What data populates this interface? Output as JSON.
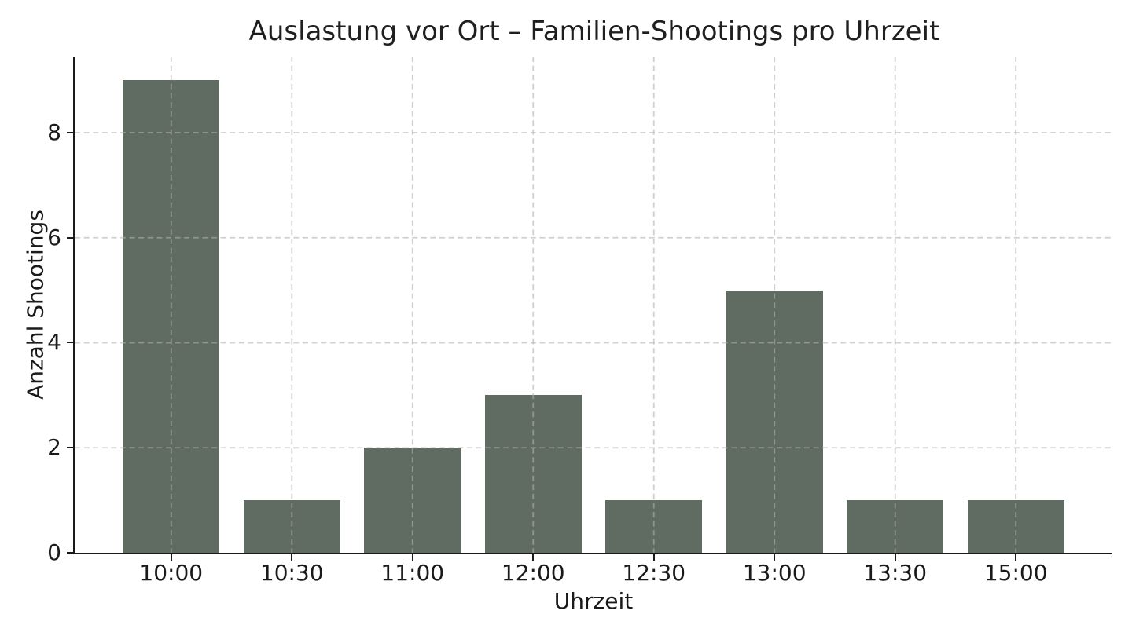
{
  "chart_data": {
    "type": "bar",
    "title": "Auslastung vor Ort – Familien-Shootings pro Uhrzeit",
    "xlabel": "Uhrzeit",
    "ylabel": "Anzahl Shootings",
    "categories": [
      "10:00",
      "10:30",
      "11:00",
      "12:00",
      "12:30",
      "13:00",
      "13:30",
      "15:00"
    ],
    "values": [
      9,
      1,
      2,
      3,
      1,
      5,
      1,
      1
    ],
    "yticks": [
      0,
      2,
      4,
      6,
      8
    ],
    "ylim": [
      0,
      9.45
    ],
    "xlim": [
      -0.8,
      7.8
    ],
    "bar_width": 0.8,
    "grid": true,
    "grid_style": "dashed",
    "legend_position": "none",
    "colors": {
      "bar": "#606c61",
      "grid": "rgba(176,176,176,0.6)",
      "axis": "#1a1a1a",
      "text": "#1a1a1a",
      "background": "#ffffff"
    }
  }
}
